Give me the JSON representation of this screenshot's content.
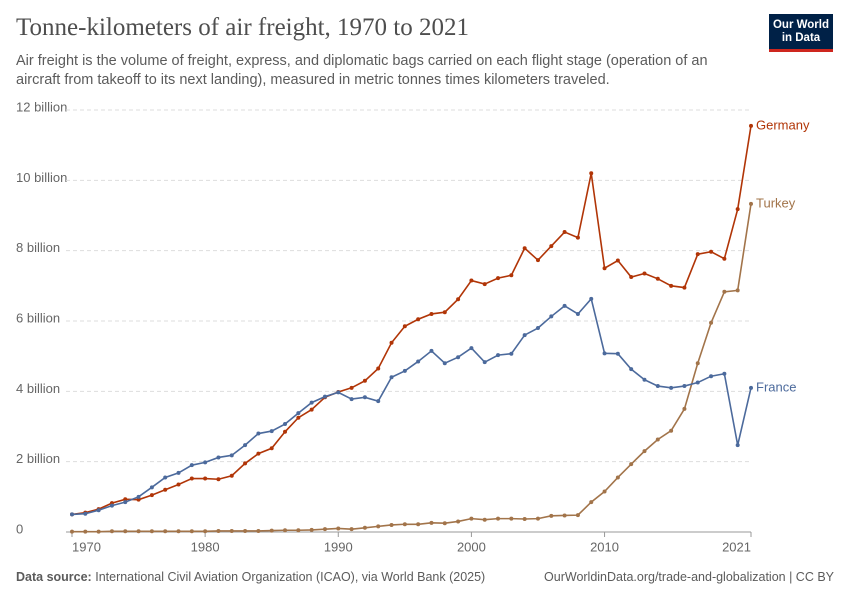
{
  "chart_data": {
    "type": "line",
    "title": "Tonne-kilometers of air freight, 1970 to 2021",
    "subtitle": "Air freight is the volume of freight, express, and diplomatic bags carried on each flight stage (operation of an aircraft from takeoff to its next landing), measured in metric tonnes times kilometers traveled.",
    "logo": [
      "Our World",
      "in Data"
    ],
    "source_label": "Data source:",
    "source": "International Civil Aviation Organization (ICAO), via World Bank (2025)",
    "footer": "OurWorldinData.org/trade-and-globalization | CC BY",
    "x": [
      1970,
      1971,
      1972,
      1973,
      1974,
      1975,
      1976,
      1977,
      1978,
      1979,
      1980,
      1981,
      1982,
      1983,
      1984,
      1985,
      1986,
      1987,
      1988,
      1989,
      1990,
      1991,
      1992,
      1993,
      1994,
      1995,
      1996,
      1997,
      1998,
      1999,
      2000,
      2001,
      2002,
      2003,
      2004,
      2005,
      2006,
      2007,
      2008,
      2009,
      2010,
      2011,
      2012,
      2013,
      2014,
      2015,
      2016,
      2017,
      2018,
      2019,
      2020,
      2021
    ],
    "xlim": [
      1970,
      2021
    ],
    "xticks": [
      1970,
      1980,
      1990,
      2000,
      2010,
      2021
    ],
    "ylim": [
      0,
      12
    ],
    "yticks": [
      0,
      {
        "value": 2,
        "label": "2 billion"
      },
      {
        "value": 4,
        "label": "4 billion"
      },
      {
        "value": 6,
        "label": "6 billion"
      },
      {
        "value": 8,
        "label": "8 billion"
      },
      {
        "value": 10,
        "label": "10 billion"
      },
      {
        "value": 12,
        "label": "12 billion"
      }
    ],
    "grid": true,
    "series": [
      {
        "name": "Germany",
        "color": "#b13507",
        "values": [
          0.5,
          0.55,
          0.65,
          0.82,
          0.93,
          0.92,
          1.05,
          1.2,
          1.35,
          1.52,
          1.52,
          1.5,
          1.6,
          1.95,
          2.23,
          2.38,
          2.85,
          3.25,
          3.48,
          3.83,
          3.98,
          4.1,
          4.3,
          4.65,
          5.38,
          5.85,
          6.05,
          6.2,
          6.25,
          6.62,
          7.15,
          7.05,
          7.22,
          7.3,
          8.07,
          7.73,
          8.13,
          8.53,
          8.37,
          10.2,
          7.5,
          7.72,
          7.25,
          7.35,
          7.2,
          7.0,
          6.95,
          7.9,
          7.97,
          7.77,
          9.18,
          11.55
        ]
      },
      {
        "name": "Turkey",
        "color": "#a2744a",
        "values": [
          0.01,
          0.01,
          0.01,
          0.02,
          0.02,
          0.02,
          0.02,
          0.02,
          0.02,
          0.02,
          0.02,
          0.03,
          0.03,
          0.03,
          0.03,
          0.04,
          0.05,
          0.05,
          0.06,
          0.08,
          0.1,
          0.08,
          0.12,
          0.16,
          0.2,
          0.22,
          0.22,
          0.26,
          0.25,
          0.3,
          0.38,
          0.35,
          0.38,
          0.38,
          0.37,
          0.38,
          0.46,
          0.47,
          0.48,
          0.85,
          1.15,
          1.55,
          1.93,
          2.3,
          2.63,
          2.88,
          3.5,
          4.8,
          5.95,
          6.83,
          6.87,
          9.33
        ]
      },
      {
        "name": "France",
        "color": "#4c6a9c",
        "values": [
          0.5,
          0.52,
          0.62,
          0.75,
          0.85,
          1.0,
          1.27,
          1.55,
          1.68,
          1.9,
          1.98,
          2.12,
          2.18,
          2.47,
          2.8,
          2.87,
          3.07,
          3.38,
          3.68,
          3.85,
          3.97,
          3.78,
          3.83,
          3.72,
          4.4,
          4.58,
          4.85,
          5.15,
          4.8,
          4.97,
          5.23,
          4.83,
          5.03,
          5.07,
          5.6,
          5.8,
          6.13,
          6.43,
          6.2,
          6.63,
          5.08,
          5.07,
          4.63,
          4.33,
          4.15,
          4.1,
          4.15,
          4.25,
          4.43,
          4.5,
          2.47,
          4.1
        ]
      }
    ]
  }
}
